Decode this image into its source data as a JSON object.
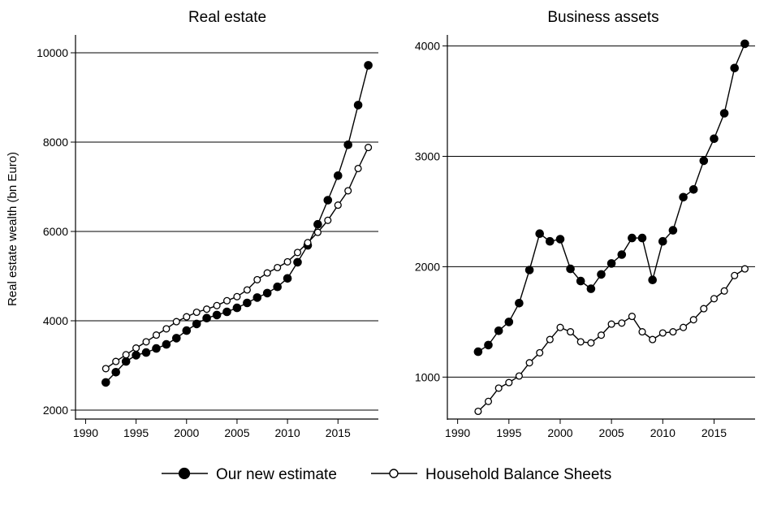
{
  "chart_data": [
    {
      "type": "line",
      "title": "Real estate",
      "xlabel": "",
      "ylabel": "Real estate wealth (bn Euro)",
      "xlim": [
        1989,
        2019
      ],
      "ylim": [
        1800,
        10400
      ],
      "xticks": [
        1990,
        1995,
        2000,
        2005,
        2010,
        2015
      ],
      "yticks": [
        2000,
        4000,
        6000,
        8000,
        10000
      ],
      "grid": "horizontal",
      "series": [
        {
          "name": "Our new estimate",
          "marker": "filled-circle",
          "x": [
            1992,
            1993,
            1994,
            1995,
            1996,
            1997,
            1998,
            1999,
            2000,
            2001,
            2002,
            2003,
            2004,
            2005,
            2006,
            2007,
            2008,
            2009,
            2010,
            2011,
            2012,
            2013,
            2014,
            2015,
            2016,
            2017,
            2018
          ],
          "y": [
            2620,
            2850,
            3090,
            3230,
            3290,
            3380,
            3470,
            3610,
            3780,
            3930,
            4060,
            4130,
            4200,
            4290,
            4400,
            4520,
            4620,
            4760,
            4950,
            5310,
            5690,
            6160,
            6700,
            7250,
            7940,
            8830,
            9720
          ]
        },
        {
          "name": "Household Balance Sheets",
          "marker": "hollow-circle",
          "x": [
            1992,
            1993,
            1994,
            1995,
            1996,
            1997,
            1998,
            1999,
            2000,
            2001,
            2002,
            2003,
            2004,
            2005,
            2006,
            2007,
            2008,
            2009,
            2010,
            2011,
            2012,
            2013,
            2014,
            2015,
            2016,
            2017,
            2018
          ],
          "y": [
            2930,
            3090,
            3240,
            3390,
            3530,
            3680,
            3820,
            3980,
            4090,
            4190,
            4260,
            4340,
            4450,
            4540,
            4690,
            4920,
            5070,
            5190,
            5320,
            5530,
            5750,
            5980,
            6250,
            6590,
            6910,
            7410,
            7880
          ]
        }
      ]
    },
    {
      "type": "line",
      "title": "Business assets",
      "xlabel": "",
      "ylabel": "",
      "xlim": [
        1989,
        2019
      ],
      "ylim": [
        620,
        4100
      ],
      "xticks": [
        1990,
        1995,
        2000,
        2005,
        2010,
        2015
      ],
      "yticks": [
        1000,
        2000,
        3000,
        4000
      ],
      "grid": "horizontal",
      "series": [
        {
          "name": "Our new estimate",
          "marker": "filled-circle",
          "x": [
            1992,
            1993,
            1994,
            1995,
            1996,
            1997,
            1998,
            1999,
            2000,
            2001,
            2002,
            2003,
            2004,
            2005,
            2006,
            2007,
            2008,
            2009,
            2010,
            2011,
            2012,
            2013,
            2014,
            2015,
            2016,
            2017,
            2018
          ],
          "y": [
            1230,
            1290,
            1420,
            1500,
            1670,
            1970,
            2300,
            2230,
            2250,
            1980,
            1870,
            1800,
            1930,
            2030,
            2110,
            2260,
            2260,
            1880,
            2230,
            2330,
            2630,
            2700,
            2960,
            3160,
            3390,
            3800,
            4020
          ]
        },
        {
          "name": "Household Balance Sheets",
          "marker": "hollow-circle",
          "x": [
            1992,
            1993,
            1994,
            1995,
            1996,
            1997,
            1998,
            1999,
            2000,
            2001,
            2002,
            2003,
            2004,
            2005,
            2006,
            2007,
            2008,
            2009,
            2010,
            2011,
            2012,
            2013,
            2014,
            2015,
            2016,
            2017,
            2018
          ],
          "y": [
            690,
            780,
            900,
            950,
            1010,
            1130,
            1220,
            1340,
            1450,
            1410,
            1320,
            1310,
            1380,
            1480,
            1490,
            1550,
            1410,
            1340,
            1400,
            1410,
            1450,
            1520,
            1620,
            1710,
            1780,
            1920,
            1980
          ]
        }
      ]
    }
  ],
  "legend": {
    "position": "bottom-center",
    "items": [
      {
        "label": "Our new estimate",
        "marker": "filled-circle"
      },
      {
        "label": "Household Balance Sheets",
        "marker": "hollow-circle"
      }
    ]
  }
}
